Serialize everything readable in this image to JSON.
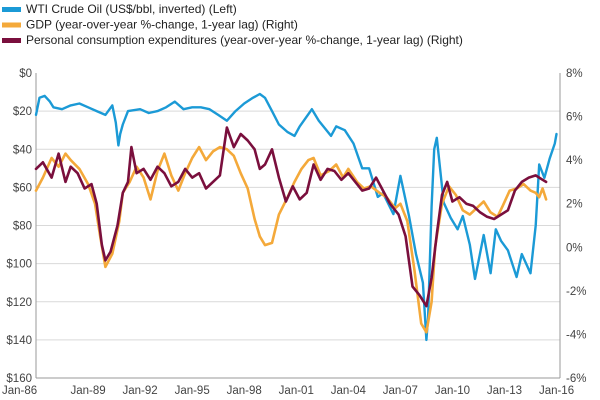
{
  "chart_data": {
    "type": "line",
    "title": "",
    "xlabel": "",
    "ylabel_left": "",
    "ylabel_right": "",
    "legend_position": "top-left",
    "grid": true,
    "x_ticks": [
      "Jan-86",
      "Jan-89",
      "Jan-92",
      "Jan-95",
      "Jan-98",
      "Jan-01",
      "Jan-04",
      "Jan-07",
      "Jan-10",
      "Jan-13",
      "Jan-16"
    ],
    "y_left": {
      "inverted": true,
      "range": [
        0,
        160
      ],
      "ticks": [
        0,
        20,
        40,
        60,
        80,
        100,
        120,
        140,
        160
      ],
      "tick_labels": [
        "$0",
        "$20",
        "$40",
        "$60",
        "$80",
        "$100",
        "$120",
        "$140",
        "$160"
      ]
    },
    "y_right": {
      "range": [
        -6,
        8
      ],
      "ticks": [
        8,
        6,
        4,
        2,
        0,
        -2,
        -4,
        -6
      ],
      "tick_labels": [
        "8%",
        "6%",
        "4%",
        "2%",
        "0%",
        "-2%",
        "-4%",
        "-6%"
      ]
    },
    "series": [
      {
        "name": "WTI Crude Oil (US$/bbl, inverted)  (Left)",
        "axis": "left",
        "color": "#1b9ad6",
        "points": [
          [
            1986.0,
            22
          ],
          [
            1986.2,
            13
          ],
          [
            1986.5,
            12
          ],
          [
            1986.8,
            15
          ],
          [
            1987.0,
            18
          ],
          [
            1987.5,
            19
          ],
          [
            1988.0,
            17
          ],
          [
            1988.5,
            16
          ],
          [
            1989.0,
            18
          ],
          [
            1989.5,
            20
          ],
          [
            1990.0,
            22
          ],
          [
            1990.4,
            17
          ],
          [
            1990.6,
            26
          ],
          [
            1990.75,
            38
          ],
          [
            1990.85,
            32
          ],
          [
            1991.0,
            27
          ],
          [
            1991.3,
            20
          ],
          [
            1992.0,
            19
          ],
          [
            1992.5,
            21
          ],
          [
            1993.0,
            20
          ],
          [
            1993.5,
            18
          ],
          [
            1994.0,
            15
          ],
          [
            1994.5,
            19
          ],
          [
            1995.0,
            18
          ],
          [
            1995.5,
            18
          ],
          [
            1996.0,
            19
          ],
          [
            1996.5,
            22
          ],
          [
            1997.0,
            25
          ],
          [
            1997.5,
            20
          ],
          [
            1998.0,
            16
          ],
          [
            1998.5,
            13
          ],
          [
            1998.9,
            11
          ],
          [
            1999.2,
            13
          ],
          [
            1999.6,
            20
          ],
          [
            2000.0,
            27
          ],
          [
            2000.5,
            31
          ],
          [
            2000.9,
            33
          ],
          [
            2001.2,
            28
          ],
          [
            2001.9,
            19
          ],
          [
            2002.3,
            25
          ],
          [
            2003.0,
            33
          ],
          [
            2003.3,
            28
          ],
          [
            2003.8,
            30
          ],
          [
            2004.3,
            37
          ],
          [
            2004.8,
            50
          ],
          [
            2005.2,
            50
          ],
          [
            2005.7,
            65
          ],
          [
            2006.0,
            63
          ],
          [
            2006.6,
            74
          ],
          [
            2007.0,
            54
          ],
          [
            2007.5,
            75
          ],
          [
            2007.9,
            95
          ],
          [
            2008.3,
            110
          ],
          [
            2008.5,
            140
          ],
          [
            2008.6,
            128
          ],
          [
            2008.8,
            70
          ],
          [
            2008.95,
            40
          ],
          [
            2009.1,
            34
          ],
          [
            2009.5,
            68
          ],
          [
            2009.9,
            76
          ],
          [
            2010.3,
            82
          ],
          [
            2010.6,
            75
          ],
          [
            2011.0,
            90
          ],
          [
            2011.3,
            108
          ],
          [
            2011.8,
            85
          ],
          [
            2012.2,
            105
          ],
          [
            2012.5,
            82
          ],
          [
            2012.8,
            88
          ],
          [
            2013.2,
            93
          ],
          [
            2013.7,
            107
          ],
          [
            2014.0,
            95
          ],
          [
            2014.5,
            105
          ],
          [
            2014.8,
            80
          ],
          [
            2015.0,
            48
          ],
          [
            2015.3,
            55
          ],
          [
            2015.6,
            45
          ],
          [
            2015.9,
            37
          ],
          [
            2016.0,
            32
          ]
        ]
      },
      {
        "name": "GDP (year-over-year %-change, 1-year lag)  (Right)",
        "axis": "right",
        "color": "#f4a93a",
        "points": [
          [
            1986.0,
            2.6
          ],
          [
            1986.4,
            3.2
          ],
          [
            1986.9,
            4.1
          ],
          [
            1987.3,
            3.7
          ],
          [
            1987.7,
            4.3
          ],
          [
            1988.0,
            4.0
          ],
          [
            1988.5,
            3.6
          ],
          [
            1989.0,
            2.9
          ],
          [
            1989.4,
            2.0
          ],
          [
            1989.7,
            0.5
          ],
          [
            1990.0,
            -0.9
          ],
          [
            1990.4,
            -0.3
          ],
          [
            1990.8,
            1.2
          ],
          [
            1991.0,
            2.5
          ],
          [
            1991.4,
            3.0
          ],
          [
            1991.8,
            3.7
          ],
          [
            1992.2,
            3.2
          ],
          [
            1992.6,
            2.2
          ],
          [
            1993.0,
            3.5
          ],
          [
            1993.4,
            4.3
          ],
          [
            1993.8,
            3.3
          ],
          [
            1994.2,
            2.6
          ],
          [
            1994.6,
            3.4
          ],
          [
            1995.0,
            4.1
          ],
          [
            1995.4,
            4.6
          ],
          [
            1995.8,
            4.0
          ],
          [
            1996.2,
            4.4
          ],
          [
            1996.6,
            4.6
          ],
          [
            1997.0,
            4.5
          ],
          [
            1997.4,
            4.2
          ],
          [
            1997.8,
            3.4
          ],
          [
            1998.2,
            2.7
          ],
          [
            1998.6,
            1.3
          ],
          [
            1998.9,
            0.5
          ],
          [
            1999.2,
            0.1
          ],
          [
            1999.6,
            0.2
          ],
          [
            2000.0,
            1.5
          ],
          [
            2000.5,
            2.3
          ],
          [
            2000.9,
            3.0
          ],
          [
            2001.3,
            3.6
          ],
          [
            2001.7,
            4.0
          ],
          [
            2002.0,
            4.1
          ],
          [
            2002.4,
            3.3
          ],
          [
            2002.9,
            3.5
          ],
          [
            2003.3,
            3.8
          ],
          [
            2003.7,
            3.2
          ],
          [
            2004.0,
            3.6
          ],
          [
            2004.5,
            3.0
          ],
          [
            2004.9,
            2.7
          ],
          [
            2005.3,
            2.8
          ],
          [
            2005.8,
            2.5
          ],
          [
            2006.2,
            2.3
          ],
          [
            2006.7,
            1.8
          ],
          [
            2007.0,
            2.0
          ],
          [
            2007.4,
            1.2
          ],
          [
            2007.8,
            -1.0
          ],
          [
            2008.2,
            -3.5
          ],
          [
            2008.5,
            -3.9
          ],
          [
            2008.8,
            -2.5
          ],
          [
            2009.0,
            0.0
          ],
          [
            2009.4,
            2.0
          ],
          [
            2009.8,
            2.8
          ],
          [
            2010.2,
            2.4
          ],
          [
            2010.6,
            1.7
          ],
          [
            2011.0,
            1.5
          ],
          [
            2011.4,
            1.8
          ],
          [
            2011.8,
            2.1
          ],
          [
            2012.2,
            1.6
          ],
          [
            2012.6,
            1.4
          ],
          [
            2012.9,
            1.9
          ],
          [
            2013.3,
            2.6
          ],
          [
            2013.7,
            2.7
          ],
          [
            2014.1,
            2.9
          ],
          [
            2014.5,
            2.6
          ],
          [
            2014.8,
            2.5
          ],
          [
            2015.0,
            2.3
          ],
          [
            2015.2,
            2.7
          ],
          [
            2015.4,
            2.2
          ]
        ]
      },
      {
        "name": "Personal consumption expenditures (year-over-year %-change, 1-year lag)  (Right)",
        "axis": "right",
        "color": "#7a0f3d",
        "points": [
          [
            1986.0,
            3.6
          ],
          [
            1986.4,
            3.9
          ],
          [
            1986.9,
            3.2
          ],
          [
            1987.3,
            4.3
          ],
          [
            1987.7,
            3.0
          ],
          [
            1988.0,
            3.7
          ],
          [
            1988.4,
            3.4
          ],
          [
            1988.8,
            2.7
          ],
          [
            1989.2,
            2.9
          ],
          [
            1989.5,
            2.0
          ],
          [
            1989.8,
            0.1
          ],
          [
            1990.0,
            -0.6
          ],
          [
            1990.3,
            -0.2
          ],
          [
            1990.7,
            1.0
          ],
          [
            1991.0,
            2.5
          ],
          [
            1991.3,
            3.0
          ],
          [
            1991.5,
            4.6
          ],
          [
            1991.8,
            3.4
          ],
          [
            1992.2,
            3.6
          ],
          [
            1992.6,
            3.1
          ],
          [
            1993.0,
            3.7
          ],
          [
            1993.4,
            3.4
          ],
          [
            1993.8,
            2.8
          ],
          [
            1994.2,
            3.0
          ],
          [
            1994.6,
            3.6
          ],
          [
            1995.0,
            3.2
          ],
          [
            1995.4,
            3.4
          ],
          [
            1995.8,
            2.7
          ],
          [
            1996.2,
            3.0
          ],
          [
            1996.6,
            3.3
          ],
          [
            1997.0,
            5.5
          ],
          [
            1997.4,
            4.6
          ],
          [
            1997.8,
            5.2
          ],
          [
            1998.2,
            4.9
          ],
          [
            1998.6,
            4.5
          ],
          [
            1998.9,
            3.6
          ],
          [
            1999.2,
            3.8
          ],
          [
            1999.6,
            4.5
          ],
          [
            2000.0,
            3.2
          ],
          [
            2000.4,
            2.1
          ],
          [
            2000.8,
            2.8
          ],
          [
            2001.2,
            2.2
          ],
          [
            2001.6,
            2.5
          ],
          [
            2002.0,
            3.8
          ],
          [
            2002.4,
            3.1
          ],
          [
            2002.8,
            3.6
          ],
          [
            2003.2,
            3.5
          ],
          [
            2003.6,
            3.1
          ],
          [
            2004.0,
            3.4
          ],
          [
            2004.4,
            3.0
          ],
          [
            2004.8,
            2.6
          ],
          [
            2005.2,
            2.7
          ],
          [
            2005.6,
            3.2
          ],
          [
            2006.0,
            2.6
          ],
          [
            2006.4,
            2.0
          ],
          [
            2006.9,
            1.5
          ],
          [
            2007.3,
            0.5
          ],
          [
            2007.7,
            -1.8
          ],
          [
            2008.1,
            -2.2
          ],
          [
            2008.5,
            -2.7
          ],
          [
            2008.8,
            -1.4
          ],
          [
            2009.1,
            0.6
          ],
          [
            2009.4,
            2.4
          ],
          [
            2009.7,
            3.0
          ],
          [
            2010.0,
            2.1
          ],
          [
            2010.4,
            2.3
          ],
          [
            2010.8,
            2.0
          ],
          [
            2011.2,
            1.9
          ],
          [
            2011.6,
            1.6
          ],
          [
            2012.0,
            1.4
          ],
          [
            2012.4,
            1.3
          ],
          [
            2012.8,
            1.5
          ],
          [
            2013.2,
            1.7
          ],
          [
            2013.6,
            2.6
          ],
          [
            2014.0,
            3.0
          ],
          [
            2014.4,
            3.2
          ],
          [
            2014.8,
            3.3
          ],
          [
            2015.2,
            3.1
          ],
          [
            2015.4,
            3.0
          ]
        ]
      }
    ]
  }
}
